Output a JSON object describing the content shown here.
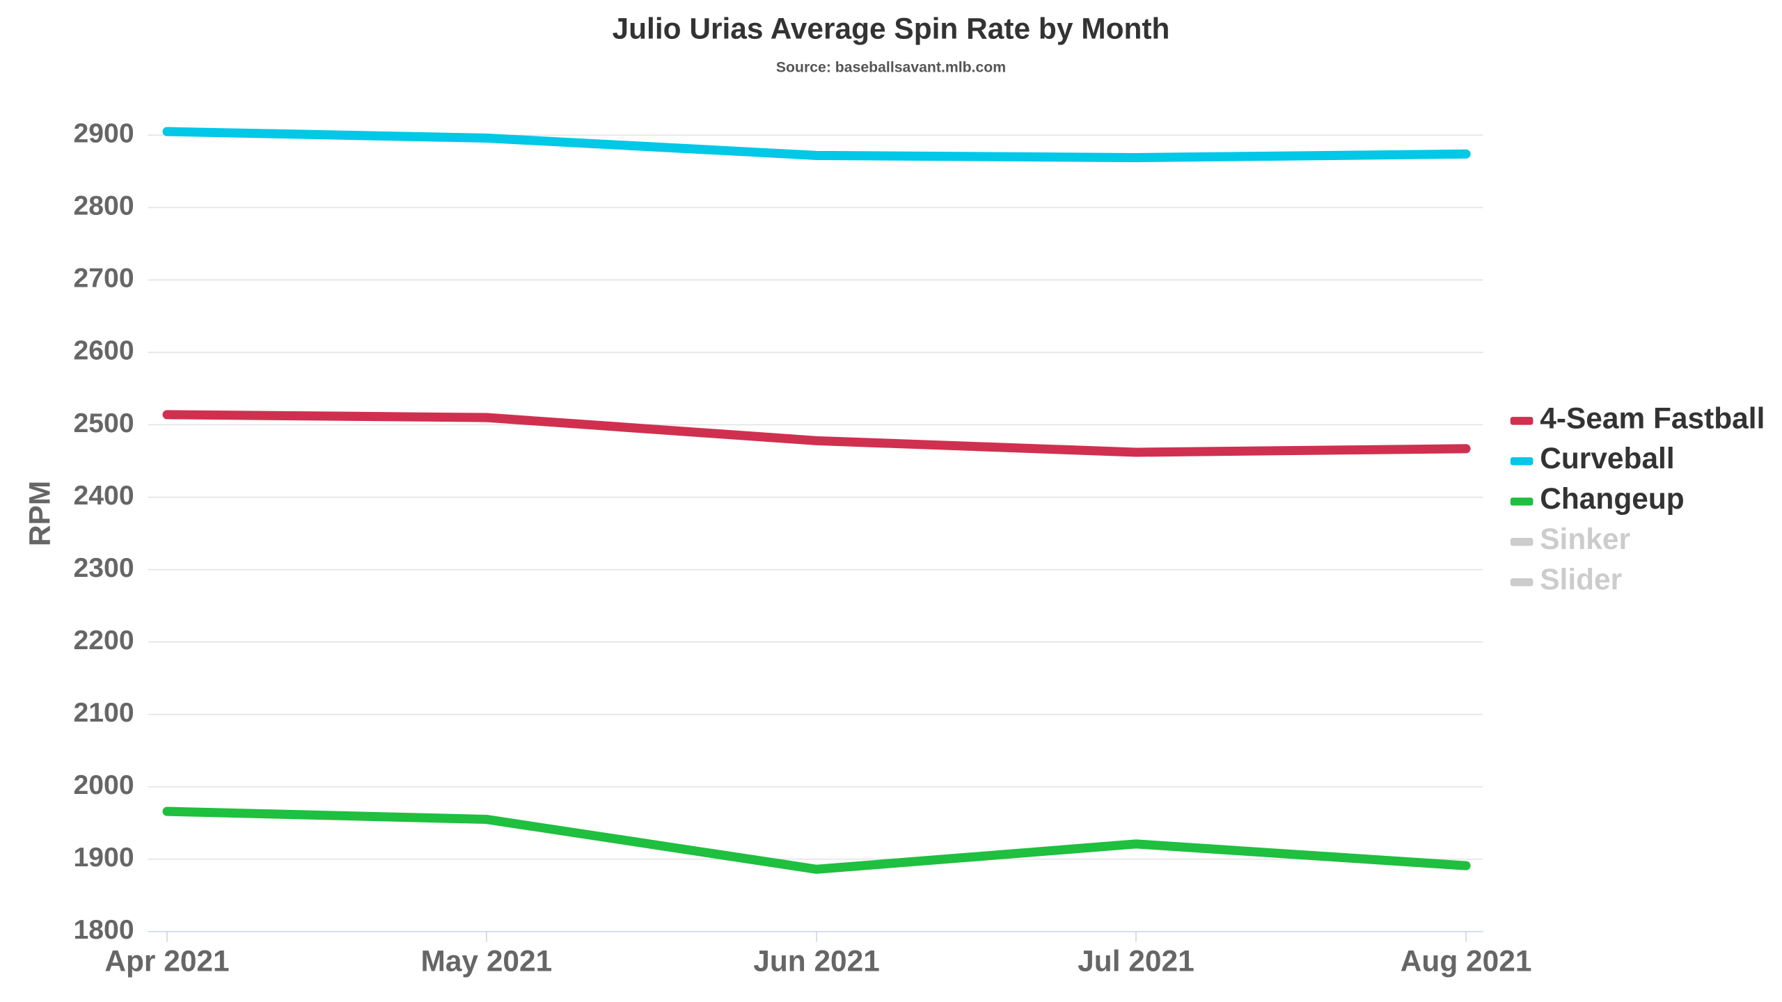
{
  "chart_data": {
    "type": "line",
    "title": "Julio Urias Average Spin Rate by Month",
    "subtitle": "Source: baseballsavant.mlb.com",
    "y_label": "RPM",
    "x": [
      "2021-04",
      "2021-05",
      "2021-06",
      "2021-07",
      "2021-08"
    ],
    "xlim": [
      "2021-04",
      "2021-08"
    ],
    "xticks": [
      {
        "value": "2021-04",
        "label": "Apr 2021"
      },
      {
        "value": "2021-05",
        "label": "May 2021"
      },
      {
        "value": "2021-06",
        "label": "Jun 2021"
      },
      {
        "value": "2021-07",
        "label": "Jul 2021"
      },
      {
        "value": "2021-08",
        "label": "Aug 2021"
      }
    ],
    "ylim": [
      1800,
      2900
    ],
    "yticks": [
      1800,
      1900,
      2000,
      2100,
      2200,
      2300,
      2400,
      2500,
      2600,
      2700,
      2800,
      2900
    ],
    "grid": true,
    "legend": "right",
    "series": [
      {
        "name": "4-Seam Fastball",
        "color": "#d0304f",
        "visible": true,
        "values": [
          2514,
          2510,
          2478,
          2462,
          2467
        ]
      },
      {
        "name": "Curveball",
        "color": "#00c8e6",
        "visible": true,
        "values": [
          2905,
          2896,
          2872,
          2869,
          2874
        ]
      },
      {
        "name": "Changeup",
        "color": "#1fbf3f",
        "visible": true,
        "values": [
          1966,
          1955,
          1886,
          1921,
          1891
        ]
      },
      {
        "name": "Sinker",
        "color": "#cccccc",
        "visible": false,
        "values": [
          null,
          null,
          null,
          null,
          null
        ]
      },
      {
        "name": "Slider",
        "color": "#cccccc",
        "visible": false,
        "values": [
          null,
          null,
          null,
          null,
          null
        ]
      }
    ]
  }
}
